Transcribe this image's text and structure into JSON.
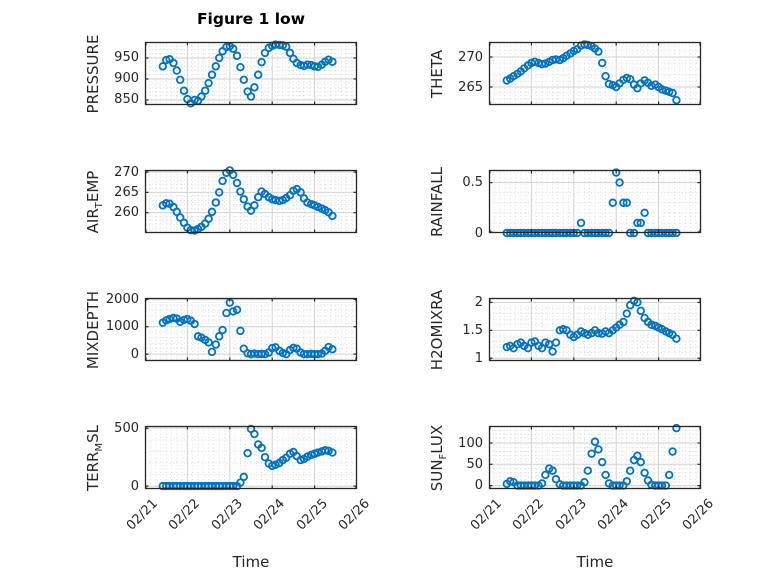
{
  "figure": {
    "title": "Figure 1 low",
    "xlabel": "Time",
    "marker_color": "#0072BD",
    "axis_color": "#262626",
    "major_grid_color": "#d2d2d2",
    "minor_grid_color": "#c8c8c8",
    "background_color": "#ffffff"
  },
  "x_axis": {
    "label": "Time",
    "tick_labels": [
      "02/21",
      "02/22",
      "02/23",
      "02/24",
      "02/25",
      "02/26"
    ],
    "range_days": [
      0,
      5
    ],
    "minor_divisions_per_day": 8
  },
  "time_days": [
    0.42,
    0.5,
    0.58,
    0.67,
    0.75,
    0.83,
    0.92,
    1.0,
    1.08,
    1.17,
    1.25,
    1.33,
    1.42,
    1.5,
    1.58,
    1.67,
    1.75,
    1.83,
    1.92,
    2.0,
    2.08,
    2.17,
    2.25,
    2.33,
    2.42,
    2.5,
    2.58,
    2.67,
    2.75,
    2.83,
    2.92,
    3.0,
    3.08,
    3.17,
    3.25,
    3.33,
    3.42,
    3.5,
    3.58,
    3.67,
    3.75,
    3.83,
    3.92,
    4.0,
    4.08,
    4.17,
    4.25,
    4.33,
    4.42
  ],
  "chart_data": [
    {
      "type": "scatter",
      "marker": "o",
      "name": "PRESSURE",
      "ylabel_pre": "PRESSURE",
      "ylabel_sub": "",
      "ylabel_post": "",
      "ylim": [
        838,
        988
      ],
      "yticks": [
        850,
        900,
        950
      ],
      "ytick_labels": [
        "850",
        "900",
        "950"
      ],
      "y_minor_step": 10,
      "values": [
        930,
        945,
        947,
        938,
        920,
        898,
        872,
        852,
        842,
        850,
        848,
        858,
        872,
        890,
        910,
        930,
        950,
        966,
        976,
        978,
        972,
        955,
        928,
        898,
        870,
        858,
        880,
        910,
        940,
        962,
        974,
        979,
        982,
        981,
        980,
        977,
        962,
        948,
        938,
        933,
        931,
        934,
        933,
        930,
        929,
        934,
        941,
        946,
        941
      ]
    },
    {
      "type": "scatter",
      "marker": "o",
      "name": "THETA",
      "ylabel_pre": "THETA",
      "ylabel_sub": "",
      "ylabel_post": "",
      "ylim": [
        262,
        272.5
      ],
      "yticks": [
        265,
        270
      ],
      "ytick_labels": [
        "265",
        "270"
      ],
      "y_minor_step": 1,
      "values": [
        266.1,
        266.4,
        266.8,
        267.2,
        267.6,
        268.1,
        268.6,
        269.0,
        269.2,
        269.0,
        268.8,
        268.9,
        269.2,
        269.5,
        269.6,
        269.5,
        269.8,
        270.2,
        270.6,
        271.0,
        271.3,
        271.9,
        272.1,
        272.0,
        271.8,
        271.4,
        270.9,
        269.0,
        266.8,
        265.5,
        265.3,
        265.0,
        265.6,
        266.2,
        266.5,
        266.3,
        265.4,
        264.8,
        265.6,
        266.1,
        265.7,
        265.2,
        265.4,
        265.0,
        264.6,
        264.4,
        264.2,
        264.0,
        262.8
      ]
    },
    {
      "type": "scatter",
      "marker": "o",
      "name": "AIR_TEMP",
      "ylabel_pre": "AIR",
      "ylabel_sub": "T",
      "ylabel_post": "EMP",
      "ylim": [
        255,
        270.5
      ],
      "yticks": [
        260,
        265,
        270
      ],
      "ytick_labels": [
        "260",
        "265",
        "270"
      ],
      "y_minor_step": 1,
      "values": [
        261.8,
        262.3,
        262.2,
        261.4,
        260.2,
        258.8,
        257.5,
        256.3,
        255.7,
        255.6,
        256.0,
        256.5,
        257.3,
        258.5,
        260.2,
        262.5,
        265.0,
        267.8,
        269.8,
        270.4,
        269.3,
        267.3,
        265.2,
        263.3,
        261.5,
        260.5,
        261.8,
        263.8,
        265.2,
        264.6,
        263.8,
        263.3,
        263.1,
        262.9,
        263.1,
        263.6,
        264.3,
        265.4,
        265.8,
        265.0,
        263.5,
        262.5,
        262.1,
        261.8,
        261.4,
        261.0,
        260.6,
        260.1,
        259.2
      ]
    },
    {
      "type": "scatter",
      "marker": "o",
      "name": "RAINFALL",
      "ylabel_pre": "RAINFALL",
      "ylabel_sub": "",
      "ylabel_post": "",
      "ylim": [
        0,
        0.625
      ],
      "yticks": [
        0,
        0.5
      ],
      "ytick_labels": [
        "0",
        "0.5"
      ],
      "y_minor_step": 0.1,
      "values": [
        0,
        0,
        0,
        0,
        0,
        0,
        0,
        0,
        0,
        0,
        0,
        0,
        0,
        0,
        0,
        0,
        0,
        0,
        0,
        0,
        0,
        0.1,
        0,
        0,
        0,
        0,
        0,
        0,
        0,
        0,
        0.3,
        0.6,
        0.5,
        0.3,
        0.3,
        0,
        0,
        0.1,
        0.1,
        0.2,
        0,
        0,
        0,
        0,
        0,
        0,
        0,
        0,
        0
      ]
    },
    {
      "type": "scatter",
      "marker": "o",
      "name": "MIXDEPTH",
      "ylabel_pre": "MIXDEPTH",
      "ylabel_sub": "",
      "ylabel_post": "",
      "ylim": [
        -250,
        2050
      ],
      "yticks": [
        0,
        1000,
        2000
      ],
      "ytick_labels": [
        "0",
        "1000",
        "2000"
      ],
      "y_minor_step": 200,
      "values": [
        1150,
        1230,
        1280,
        1320,
        1300,
        1180,
        1250,
        1280,
        1220,
        1100,
        650,
        600,
        520,
        430,
        80,
        350,
        650,
        880,
        1500,
        1880,
        1560,
        1620,
        850,
        200,
        30,
        0,
        20,
        0,
        10,
        0,
        60,
        220,
        250,
        120,
        40,
        0,
        150,
        230,
        200,
        60,
        0,
        0,
        10,
        0,
        0,
        20,
        120,
        260,
        180
      ]
    },
    {
      "type": "scatter",
      "marker": "o",
      "name": "H2OMIXRA",
      "ylabel_pre": "H2OMIXRA",
      "ylabel_sub": "",
      "ylabel_post": "",
      "ylim": [
        0.95,
        2.08
      ],
      "yticks": [
        1,
        1.5,
        2
      ],
      "ytick_labels": [
        "1",
        "1.5",
        "2"
      ],
      "y_minor_step": 0.1,
      "values": [
        1.2,
        1.22,
        1.18,
        1.25,
        1.28,
        1.22,
        1.18,
        1.28,
        1.3,
        1.22,
        1.18,
        1.28,
        1.25,
        1.12,
        1.28,
        1.5,
        1.52,
        1.5,
        1.42,
        1.38,
        1.42,
        1.48,
        1.45,
        1.42,
        1.45,
        1.5,
        1.45,
        1.44,
        1.48,
        1.45,
        1.5,
        1.55,
        1.6,
        1.65,
        1.8,
        1.95,
        2.03,
        2.0,
        1.85,
        1.72,
        1.65,
        1.6,
        1.58,
        1.55,
        1.52,
        1.48,
        1.45,
        1.42,
        1.35
      ]
    },
    {
      "type": "scatter",
      "marker": "o",
      "name": "TERR_MSL",
      "ylabel_pre": "TERR",
      "ylabel_sub": "M",
      "ylabel_post": "SL",
      "ylim": [
        -25,
        520
      ],
      "yticks": [
        0,
        500
      ],
      "ytick_labels": [
        "0",
        "500"
      ],
      "y_minor_step": 100,
      "values": [
        0,
        0,
        0,
        0,
        0,
        0,
        0,
        0,
        0,
        0,
        0,
        0,
        0,
        0,
        0,
        0,
        0,
        0,
        0,
        0,
        0,
        0,
        30,
        80,
        285,
        495,
        450,
        360,
        330,
        250,
        195,
        175,
        185,
        200,
        225,
        245,
        280,
        295,
        260,
        225,
        235,
        255,
        270,
        280,
        290,
        300,
        310,
        305,
        290
      ]
    },
    {
      "type": "scatter",
      "marker": "o",
      "name": "SUN_FLUX",
      "ylabel_pre": "SUN",
      "ylabel_sub": "F",
      "ylabel_post": "LUX",
      "ylim": [
        -8,
        140
      ],
      "yticks": [
        0,
        50,
        100
      ],
      "ytick_labels": [
        "0",
        "50",
        "100"
      ],
      "y_minor_step": 10,
      "values": [
        4,
        10,
        8,
        0,
        0,
        0,
        0,
        0,
        0,
        0,
        5,
        25,
        40,
        35,
        15,
        3,
        0,
        0,
        0,
        0,
        0,
        0,
        8,
        35,
        75,
        103,
        85,
        55,
        25,
        5,
        0,
        0,
        0,
        0,
        10,
        35,
        60,
        70,
        55,
        30,
        12,
        2,
        0,
        0,
        0,
        0,
        25,
        80,
        135
      ]
    }
  ]
}
